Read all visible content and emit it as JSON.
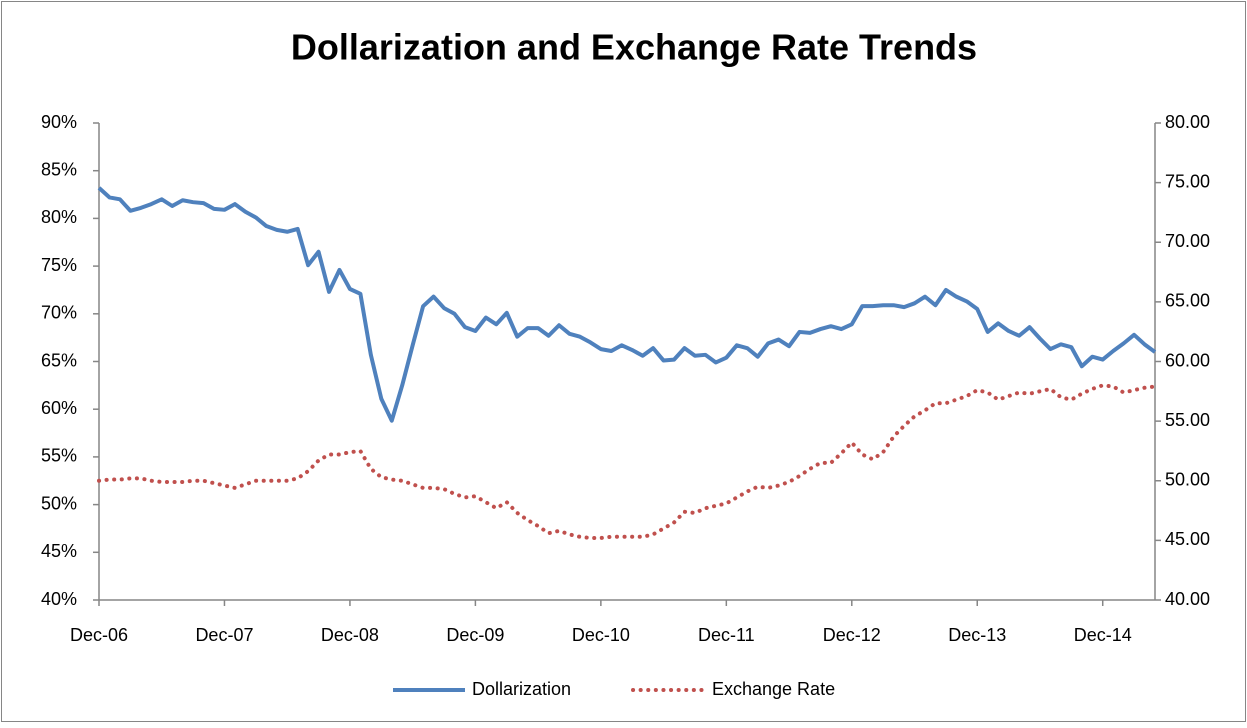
{
  "chart_data": {
    "type": "line",
    "title": "Dollarization and Exchange Rate Trends",
    "categories": [
      "Dec-06",
      null,
      null,
      null,
      null,
      null,
      null,
      null,
      null,
      null,
      null,
      null,
      "Dec-07",
      null,
      null,
      null,
      null,
      null,
      null,
      null,
      null,
      null,
      null,
      null,
      "Dec-08",
      null,
      null,
      null,
      null,
      null,
      null,
      null,
      null,
      null,
      null,
      null,
      "Dec-09",
      null,
      null,
      null,
      null,
      null,
      null,
      null,
      null,
      null,
      null,
      null,
      "Dec-10",
      null,
      null,
      null,
      null,
      null,
      null,
      null,
      null,
      null,
      null,
      null,
      "Dec-11",
      null,
      null,
      null,
      null,
      null,
      null,
      null,
      null,
      null,
      null,
      null,
      "Dec-12",
      null,
      null,
      null,
      null,
      null,
      null,
      null,
      null,
      null,
      null,
      null,
      "Dec-13",
      null,
      null,
      null,
      null,
      null,
      null,
      null,
      null,
      null,
      null,
      null,
      "Dec-14",
      null,
      null,
      null,
      null,
      null
    ],
    "series": [
      {
        "name": "Dollarization",
        "color": "#4f81bd",
        "style": "solid",
        "values": [
          83.2,
          82.2,
          82.0,
          80.8,
          81.1,
          81.5,
          82.0,
          81.3,
          81.9,
          81.7,
          81.6,
          81.0,
          80.9,
          81.5,
          80.7,
          80.1,
          79.2,
          78.8,
          78.6,
          78.9,
          75.1,
          76.5,
          72.3,
          74.6,
          72.6,
          72.1,
          65.7,
          61.1,
          58.8,
          62.5,
          66.7,
          70.8,
          71.8,
          70.6,
          70.0,
          68.6,
          68.2,
          69.6,
          68.9,
          70.1,
          67.6,
          68.5,
          68.5,
          67.7,
          68.8,
          67.9,
          67.6,
          67.0,
          66.3,
          66.1,
          66.7,
          66.2,
          65.6,
          66.4,
          65.1,
          65.2,
          66.4,
          65.6,
          65.7,
          64.9,
          65.4,
          66.7,
          66.4,
          65.5,
          66.9,
          67.3,
          66.6,
          68.1,
          68.0,
          68.4,
          68.7,
          68.4,
          68.9,
          70.8,
          70.8,
          70.9,
          70.9,
          70.7,
          71.1,
          71.8,
          70.9,
          72.5,
          71.8,
          71.3,
          70.5,
          68.1,
          69.0,
          68.2,
          67.7,
          68.6,
          67.4,
          66.3,
          66.8,
          66.5,
          64.5,
          65.5,
          65.2,
          66.1,
          66.9,
          67.8,
          66.8,
          66.0
        ]
      },
      {
        "name": "Exchange Rate",
        "color": "#c0504d",
        "style": "dotted",
        "axis": "y2",
        "values": [
          50.0,
          50.1,
          50.1,
          50.2,
          50.2,
          50.0,
          49.9,
          49.9,
          49.9,
          50.0,
          50.0,
          49.8,
          49.6,
          49.4,
          49.7,
          50.0,
          50.0,
          50.0,
          50.0,
          50.2,
          50.8,
          51.7,
          52.2,
          52.2,
          52.4,
          52.5,
          51.0,
          50.3,
          50.1,
          50.0,
          49.7,
          49.4,
          49.4,
          49.3,
          48.9,
          48.6,
          48.7,
          48.2,
          47.7,
          48.2,
          47.3,
          46.7,
          46.2,
          45.6,
          45.8,
          45.5,
          45.3,
          45.2,
          45.2,
          45.3,
          45.3,
          45.3,
          45.3,
          45.5,
          46.0,
          46.5,
          47.4,
          47.3,
          47.7,
          47.9,
          48.1,
          48.6,
          49.1,
          49.5,
          49.4,
          49.6,
          49.9,
          50.4,
          51.0,
          51.5,
          51.5,
          52.3,
          53.2,
          52.2,
          51.8,
          52.4,
          53.7,
          54.6,
          55.4,
          55.9,
          56.5,
          56.5,
          56.8,
          57.1,
          57.6,
          57.4,
          56.8,
          57.1,
          57.4,
          57.3,
          57.5,
          57.7,
          57.0,
          56.8,
          57.3,
          57.7,
          58.0,
          57.9,
          57.4,
          57.6,
          57.8,
          57.9
        ]
      }
    ],
    "ylim": [
      40,
      90
    ],
    "yticks": [
      {
        "value": 40,
        "label": "40%"
      },
      {
        "value": 45,
        "label": "45%"
      },
      {
        "value": 50,
        "label": "50%"
      },
      {
        "value": 55,
        "label": "55%"
      },
      {
        "value": 60,
        "label": "60%"
      },
      {
        "value": 65,
        "label": "65%"
      },
      {
        "value": 70,
        "label": "70%"
      },
      {
        "value": 75,
        "label": "75%"
      },
      {
        "value": 80,
        "label": "80%"
      },
      {
        "value": 85,
        "label": "85%"
      },
      {
        "value": 90,
        "label": "90%"
      }
    ],
    "y2lim": [
      40,
      80
    ],
    "y2ticks": [
      {
        "value": 40,
        "label": "40.00"
      },
      {
        "value": 45,
        "label": "45.00"
      },
      {
        "value": 50,
        "label": "50.00"
      },
      {
        "value": 55,
        "label": "55.00"
      },
      {
        "value": 60,
        "label": "60.00"
      },
      {
        "value": 65,
        "label": "65.00"
      },
      {
        "value": 70,
        "label": "70.00"
      },
      {
        "value": 75,
        "label": "75.00"
      },
      {
        "value": 80,
        "label": "80.00"
      }
    ],
    "legend": "bottom"
  }
}
